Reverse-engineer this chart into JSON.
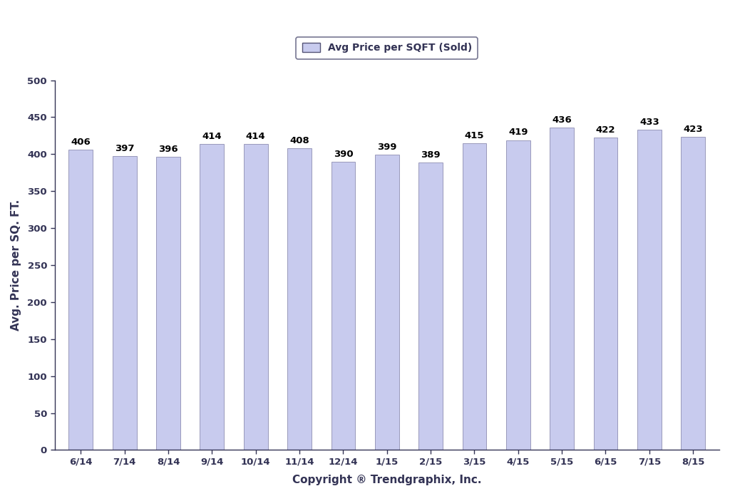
{
  "categories": [
    "6/14",
    "7/14",
    "8/14",
    "9/14",
    "10/14",
    "11/14",
    "12/14",
    "1/15",
    "2/15",
    "3/15",
    "4/15",
    "5/15",
    "6/15",
    "7/15",
    "8/15"
  ],
  "values": [
    406,
    397,
    396,
    414,
    414,
    408,
    390,
    399,
    389,
    415,
    419,
    436,
    422,
    433,
    423
  ],
  "bar_color": "#c8cbee",
  "bar_edge_color": "#9999bb",
  "ylabel": "Avg. Price per SQ. FT.",
  "xlabel": "Copyright ® Trendgraphix, Inc.",
  "ylim": [
    0,
    500
  ],
  "yticks": [
    0,
    50,
    100,
    150,
    200,
    250,
    300,
    350,
    400,
    450,
    500
  ],
  "legend_label": "Avg Price per SQFT (Sold)",
  "legend_facecolor": "#c8cbee",
  "legend_edgecolor": "#555577",
  "value_fontsize": 9.5,
  "axis_label_fontsize": 11,
  "tick_fontsize": 9.5,
  "legend_fontsize": 10,
  "background_color": "#ffffff",
  "spine_color": "#333355",
  "tick_color": "#333355",
  "label_color": "#333355"
}
